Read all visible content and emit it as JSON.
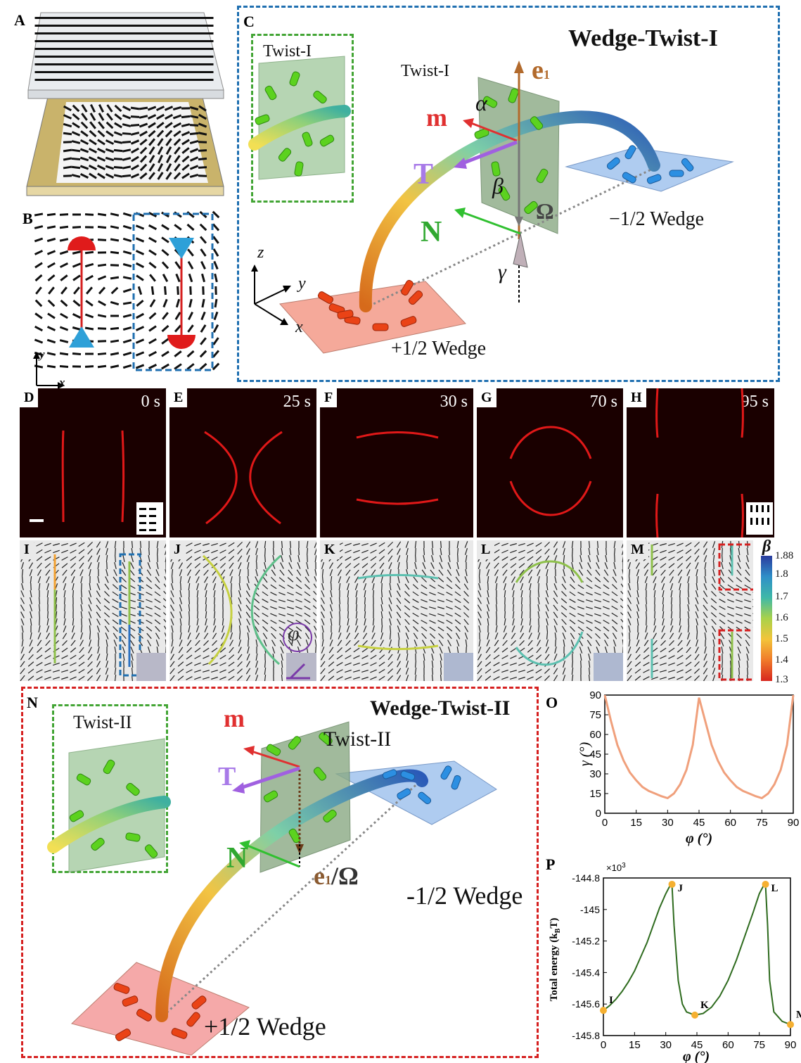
{
  "panels": {
    "A": "A",
    "B": "B",
    "C": "C",
    "D": "D",
    "E": "E",
    "F": "F",
    "G": "G",
    "H": "H",
    "I": "I",
    "J": "J",
    "K": "K",
    "L": "L",
    "M": "M",
    "N": "N",
    "O": "O",
    "P": "P"
  },
  "panel_c": {
    "title": "Wedge-Twist-I",
    "inset_label": "Twist-I",
    "plane_label": "Twist-I",
    "e1": "e",
    "e1_sub": "1",
    "m": "m",
    "T": "T",
    "N": "N",
    "alpha": "α",
    "beta": "β",
    "gamma": "γ",
    "omega": "Ω",
    "minus_wedge": "−1/2 Wedge",
    "plus_wedge": "+1/2 Wedge",
    "axis_x": "x",
    "axis_y": "y",
    "axis_z": "z"
  },
  "panel_b": {
    "axis_x": "x",
    "axis_y": "y"
  },
  "micrographs": [
    {
      "tag": "D",
      "time": "0 s"
    },
    {
      "tag": "E",
      "time": "25 s"
    },
    {
      "tag": "F",
      "time": "30 s"
    },
    {
      "tag": "G",
      "time": "70 s"
    },
    {
      "tag": "H",
      "time": "95 s"
    }
  ],
  "simulations": [
    {
      "tag": "I"
    },
    {
      "tag": "J"
    },
    {
      "tag": "K"
    },
    {
      "tag": "L"
    },
    {
      "tag": "M"
    }
  ],
  "phi_symbol": "φ",
  "colorbar": {
    "symbol": "β",
    "ticks": [
      "1.88",
      "1.8",
      "1.7",
      "1.6",
      "1.5",
      "1.4",
      "1.3"
    ],
    "colors": [
      "#2a3c9e",
      "#2f8fc8",
      "#3fb8a8",
      "#a9d24a",
      "#f3c43a",
      "#f07a2a",
      "#d7261e"
    ]
  },
  "panel_n": {
    "title": "Wedge-Twist-II",
    "inset_label": "Twist-II",
    "plane_label": "Twist-II",
    "m": "m",
    "T": "T",
    "N": "N",
    "e1_omega": "e",
    "e1_sub": "1",
    "omega_part": "/Ω",
    "minus_wedge": "-1/2 Wedge",
    "plus_wedge": "+1/2 Wedge"
  },
  "chart_data": [
    {
      "type": "line",
      "panel": "O",
      "xlabel": "φ (°)",
      "ylabel": "γ (°)",
      "xlim": [
        0,
        90
      ],
      "ylim": [
        0,
        90
      ],
      "xticks": [
        "0",
        "15",
        "30",
        "45",
        "60",
        "75",
        "90"
      ],
      "yticks": [
        "0",
        "15",
        "30",
        "45",
        "60",
        "75",
        "90"
      ],
      "color": "#f0a07c",
      "x": [
        0,
        3,
        6,
        9,
        12,
        15,
        18,
        21,
        24,
        27,
        30,
        33,
        36,
        39,
        42,
        45,
        48,
        51,
        54,
        57,
        60,
        63,
        66,
        69,
        72,
        75,
        78,
        81,
        84,
        87,
        90
      ],
      "y": [
        90,
        70,
        52,
        40,
        31,
        25,
        20,
        17,
        15,
        13,
        11.5,
        15,
        22,
        33,
        52,
        88,
        70,
        52,
        40,
        31,
        25,
        20,
        17,
        15,
        13,
        11.5,
        15,
        22,
        33,
        52,
        90
      ]
    },
    {
      "type": "line",
      "panel": "P",
      "xlabel": "φ (°)",
      "ylabel": "Total energy (k",
      "ylabel_sub": "B",
      "ylabel_end": "T)",
      "multiplier": "×10",
      "multiplier_exp": "3",
      "xlim": [
        0,
        90
      ],
      "ylim": [
        -145.8,
        -144.8
      ],
      "xticks": [
        "0",
        "15",
        "30",
        "45",
        "60",
        "75",
        "90"
      ],
      "yticks": [
        "-144.8",
        "-145",
        "-145.2",
        "-145.4",
        "-145.6",
        "-145.8"
      ],
      "color": "#2e6b1e",
      "x": [
        0,
        3,
        6,
        9,
        12,
        15,
        18,
        21,
        24,
        27,
        30,
        32,
        33,
        34,
        36,
        38,
        40,
        44,
        48,
        52,
        56,
        60,
        64,
        68,
        72,
        75,
        77,
        78,
        79,
        80,
        82,
        86,
        90
      ],
      "y": [
        -145.64,
        -145.61,
        -145.57,
        -145.52,
        -145.46,
        -145.39,
        -145.3,
        -145.21,
        -145.1,
        -144.99,
        -144.9,
        -144.85,
        -144.84,
        -145.1,
        -145.45,
        -145.6,
        -145.65,
        -145.67,
        -145.66,
        -145.62,
        -145.55,
        -145.45,
        -145.32,
        -145.17,
        -145.02,
        -144.9,
        -144.85,
        -144.84,
        -145.1,
        -145.45,
        -145.65,
        -145.71,
        -145.73
      ],
      "points": [
        {
          "label": "I",
          "x": 0,
          "y": -145.64
        },
        {
          "label": "J",
          "x": 33,
          "y": -144.84
        },
        {
          "label": "K",
          "x": 44,
          "y": -145.67
        },
        {
          "label": "L",
          "x": 78,
          "y": -144.84
        },
        {
          "label": "M",
          "x": 90,
          "y": -145.73
        }
      ],
      "point_color": "#f5b031"
    }
  ]
}
